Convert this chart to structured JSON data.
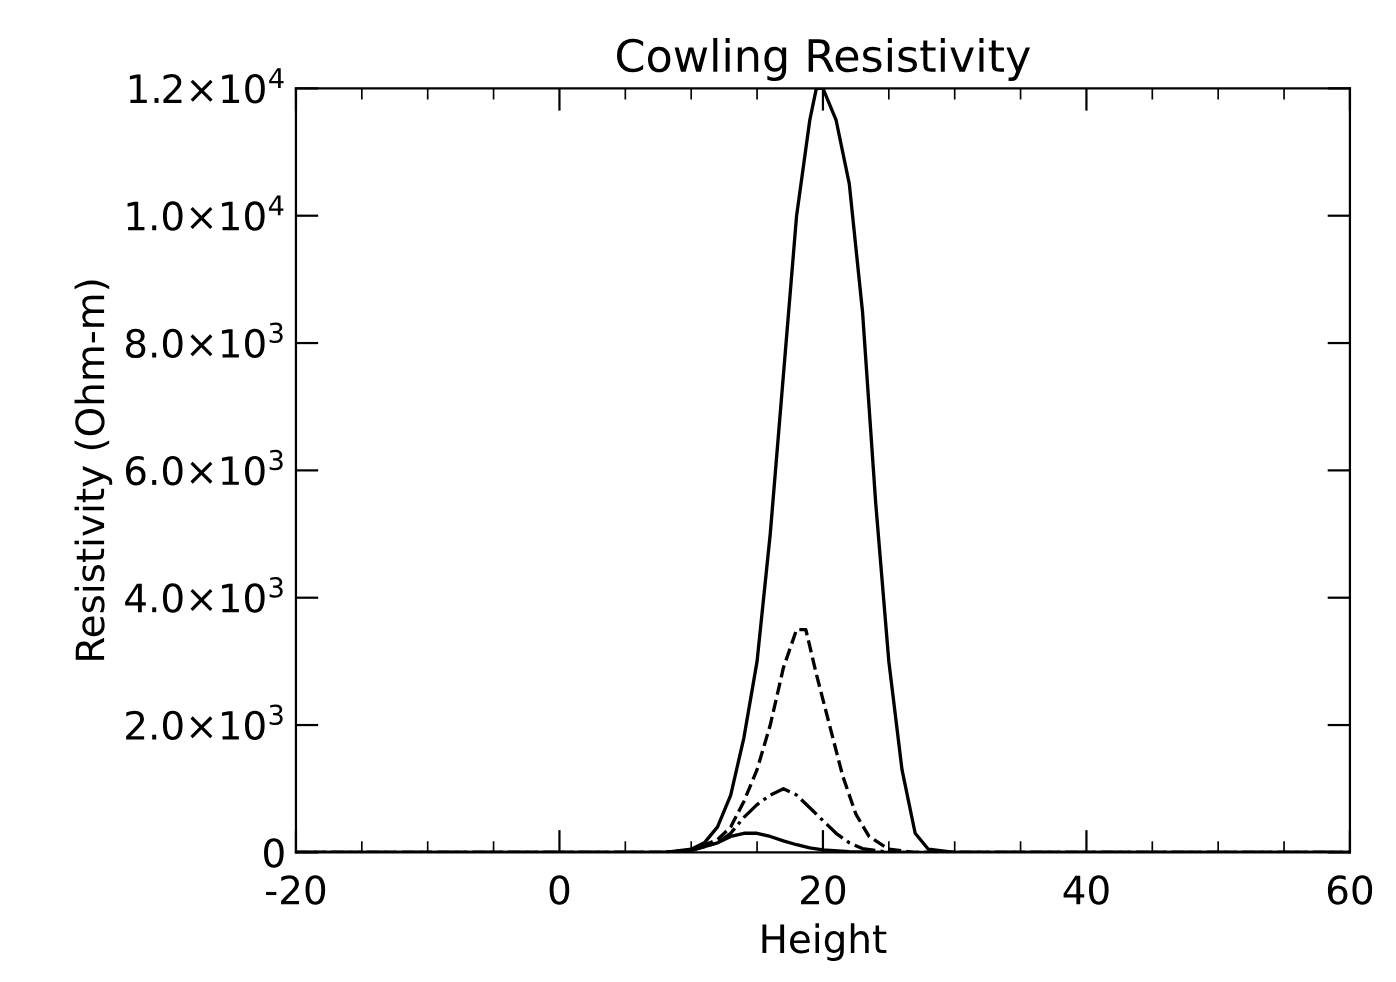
{
  "chart_data": {
    "type": "line",
    "title": "Cowling Resistivity",
    "xlabel": "Height",
    "ylabel": "Resistivity (Ohm-m)",
    "xlim": [
      -20,
      60
    ],
    "xticks": [
      -20,
      0,
      20,
      40,
      60
    ],
    "ylim": [
      0,
      12000
    ],
    "yticks": [
      {
        "value": 0,
        "label": "0"
      },
      {
        "value": 2000,
        "label": "2.0×10$^{3}$"
      },
      {
        "value": 4000,
        "label": "4.0×10$^{3}$"
      },
      {
        "value": 6000,
        "label": "6.0×10$^{3}$"
      },
      {
        "value": 8000,
        "label": "8.0×10$^{3}$"
      },
      {
        "value": 10000,
        "label": "1.0×10$^{4}$"
      },
      {
        "value": 12000,
        "label": "1.2×10$^{4}$"
      }
    ],
    "grid": false,
    "marker": "none",
    "series": [
      {
        "color": "#000000",
        "line_style": "solid",
        "x": [
          -20,
          8,
          10,
          11,
          12,
          13,
          14,
          15,
          16,
          17,
          18,
          19,
          19.5,
          20,
          21,
          22,
          23,
          24,
          25,
          26,
          27,
          28,
          30,
          60
        ],
        "values": [
          0,
          0,
          50,
          150,
          400,
          900,
          1800,
          3000,
          5000,
          7500,
          10000,
          11500,
          12000,
          12000,
          11500,
          10500,
          8500,
          5500,
          3000,
          1300,
          300,
          50,
          0,
          0
        ]
      },
      {
        "color": "#000000",
        "line_style": "dashed",
        "x": [
          -20,
          8,
          10,
          12,
          13,
          14,
          15,
          16,
          17,
          18,
          18.7,
          19.5,
          20.5,
          21.5,
          22.5,
          23.5,
          25,
          27,
          60
        ],
        "values": [
          0,
          0,
          30,
          200,
          400,
          800,
          1300,
          2000,
          2900,
          3500,
          3500,
          2800,
          2000,
          1200,
          600,
          250,
          50,
          0,
          0
        ]
      },
      {
        "color": "#000000",
        "line_style": "dashdot",
        "x": [
          -20,
          8,
          10,
          12,
          13,
          14,
          15,
          16,
          17,
          18,
          19,
          20,
          21,
          22,
          23,
          25,
          60
        ],
        "values": [
          0,
          0,
          30,
          150,
          300,
          550,
          750,
          900,
          1000,
          900,
          700,
          500,
          300,
          150,
          60,
          0,
          0
        ]
      },
      {
        "color": "#000000",
        "line_style": "solid",
        "x": [
          -20,
          8,
          10,
          12,
          13,
          14,
          15,
          16,
          17,
          18,
          19,
          20,
          22,
          25,
          60
        ],
        "values": [
          0,
          0,
          30,
          150,
          250,
          300,
          300,
          250,
          180,
          120,
          70,
          40,
          10,
          0,
          0
        ]
      }
    ]
  }
}
